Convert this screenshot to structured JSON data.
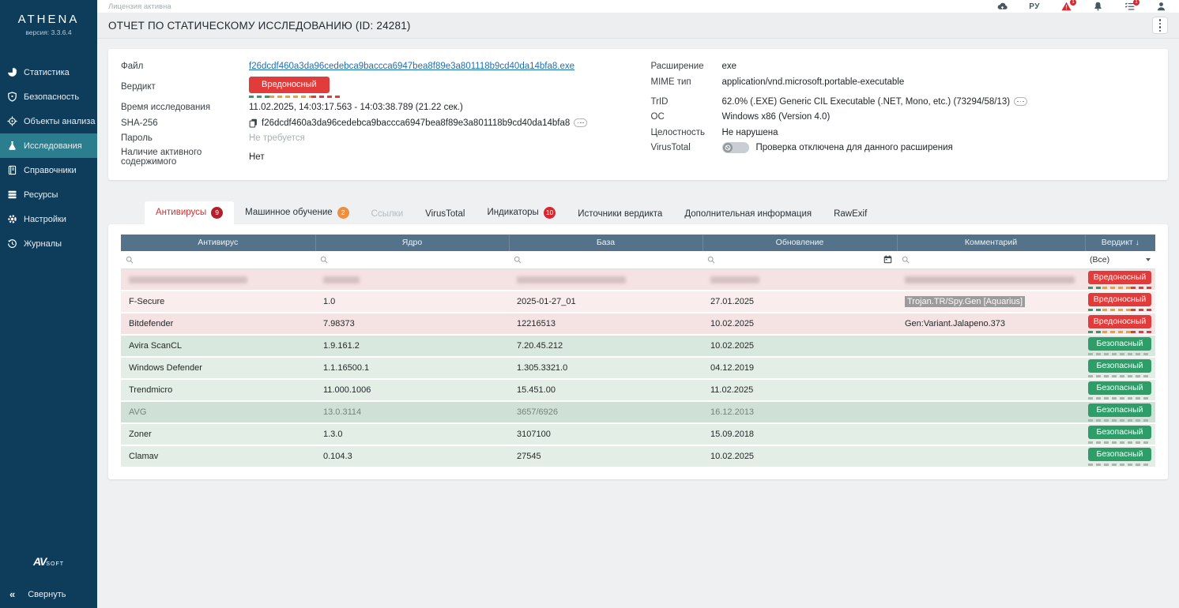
{
  "topbar": {
    "license": "Лицензия активна",
    "lang": "РУ",
    "warning_badge": "1",
    "tasks_badge": "1"
  },
  "sidebar": {
    "logo": "ATHENA",
    "version": "версия: 3.3.6.4",
    "items": [
      {
        "label": "Статистика",
        "icon": "pie-chart-icon"
      },
      {
        "label": "Безопасность",
        "icon": "shield-icon"
      },
      {
        "label": "Объекты анализа",
        "icon": "crosshair-icon"
      },
      {
        "label": "Исследования",
        "icon": "flask-icon"
      },
      {
        "label": "Справочники",
        "icon": "book-icon"
      },
      {
        "label": "Ресурсы",
        "icon": "server-icon"
      },
      {
        "label": "Настройки",
        "icon": "gear-icon"
      },
      {
        "label": "Журналы",
        "icon": "history-icon"
      }
    ],
    "active_item": "Исследования",
    "footer": {
      "brand_av": "AV",
      "brand_soft": "SOFT",
      "collapse_label": "Свернуть",
      "collapse_icon": "«"
    }
  },
  "header": {
    "title": "ОТЧЕТ ПО СТАТИЧЕСКОМУ ИССЛЕДОВАНИЮ (ID: 24281)"
  },
  "details": {
    "file_label": "Файл",
    "file_value": "f26dcdf460a3da96cedebca9baccca6947bea8f89e3a801118b9cd40da14bfa8.exe",
    "verdict_label": "Вердикт",
    "verdict_value": "Вредоносный",
    "time_label": "Время исследования",
    "time_value": "11.02.2025, 14:03:17.563 - 14:03:38.789 (21.22 сек.)",
    "sha_label": "SHA-256",
    "sha_value": "f26dcdf460a3da96cedebca9baccca6947bea8f89e3a801118b9cd40da14bfa8",
    "password_label": "Пароль",
    "password_value": "Не требуется",
    "active_content_label": "Наличие активного содержимого",
    "active_content_value": "Нет",
    "ext_label": "Расширение",
    "ext_value": "exe",
    "mime_label": "MIME тип",
    "mime_value": "application/vnd.microsoft.portable-executable",
    "trid_label": "TrID",
    "trid_value": "62.0% (.EXE) Generic CIL Executable (.NET, Mono, etc.) (73294/58/13)",
    "os_label": "ОС",
    "os_value": "Windows x86 (Version 4.0)",
    "integrity_label": "Целостность",
    "integrity_value": "Не нарушена",
    "vt_label": "VirusTotal",
    "vt_value": "Проверка отключена для данного расширения"
  },
  "tabs": [
    {
      "label": "Антивирусы",
      "badge": "9",
      "state": "active"
    },
    {
      "label": "Машинное обучение",
      "badge": "2",
      "state": "normal"
    },
    {
      "label": "Ссылки",
      "state": "disabled"
    },
    {
      "label": "VirusTotal",
      "state": "normal"
    },
    {
      "label": "Индикаторы",
      "badge": "10",
      "state": "normal"
    },
    {
      "label": "Источники вердикта",
      "state": "normal"
    },
    {
      "label": "Дополнительная информация",
      "state": "normal"
    },
    {
      "label": "RawExif",
      "state": "normal"
    }
  ],
  "table": {
    "columns": [
      "Антивирус",
      "Ядро",
      "База",
      "Обновление",
      "Комментарий",
      "Вердикт"
    ],
    "sort_indicator": "↓",
    "verdict_filter": "(Все)",
    "rows": [
      {
        "redacted": true,
        "antivirus": "",
        "core": "",
        "base": "",
        "updated": "",
        "comment": "",
        "verdict": "Вредоносный",
        "tone": "danger",
        "shade": "dark"
      },
      {
        "antivirus": "F-Secure",
        "core": "1.0",
        "base": "2025-01-27_01",
        "updated": "27.01.2025",
        "comment": "Trojan.TR/Spy.Gen [Aquarius]",
        "comment_selected": true,
        "verdict": "Вредоносный",
        "tone": "danger",
        "shade": "light"
      },
      {
        "antivirus": "Bitdefender",
        "core": "7.98373",
        "base": "12216513",
        "updated": "10.02.2025",
        "comment": "Gen:Variant.Jalapeno.373",
        "verdict": "Вредоносный",
        "tone": "danger",
        "shade": "dark"
      },
      {
        "antivirus": "Avira ScanCL",
        "core": "1.9.161.2",
        "base": "7.20.45.212",
        "updated": "10.02.2025",
        "comment": "",
        "verdict": "Безопасный",
        "tone": "safe",
        "shade": "dark"
      },
      {
        "antivirus": "Windows Defender",
        "core": "1.1.16500.1",
        "base": "1.305.3321.0",
        "updated": "04.12.2019",
        "comment": "",
        "verdict": "Безопасный",
        "tone": "safe",
        "shade": "light"
      },
      {
        "antivirus": "Trendmicro",
        "core": "11.000.1006",
        "base": "15.451.00",
        "updated": "11.02.2025",
        "comment": "",
        "verdict": "Безопасный",
        "tone": "safe",
        "shade": "light"
      },
      {
        "antivirus": "AVG",
        "core": "13.0.3114",
        "base": "3657/6926",
        "updated": "16.12.2013",
        "comment": "",
        "verdict": "Безопасный",
        "tone": "safe",
        "shade": "dim"
      },
      {
        "antivirus": "Zoner",
        "core": "1.3.0",
        "base": "3107100",
        "updated": "15.09.2018",
        "comment": "",
        "verdict": "Безопасный",
        "tone": "safe",
        "shade": "light"
      },
      {
        "antivirus": "Clamav",
        "core": "0.104.3",
        "base": "27545",
        "updated": "10.02.2025",
        "comment": "",
        "verdict": "Безопасный",
        "tone": "safe",
        "shade": "light"
      }
    ]
  },
  "colors": {
    "sidebar_bg": "#0e3d5c",
    "sidebar_active": "#2a7e8e",
    "table_header": "#54728a",
    "danger": "#e23b3b",
    "safe": "#2e9d68",
    "warning_orange": "#efa02e"
  }
}
